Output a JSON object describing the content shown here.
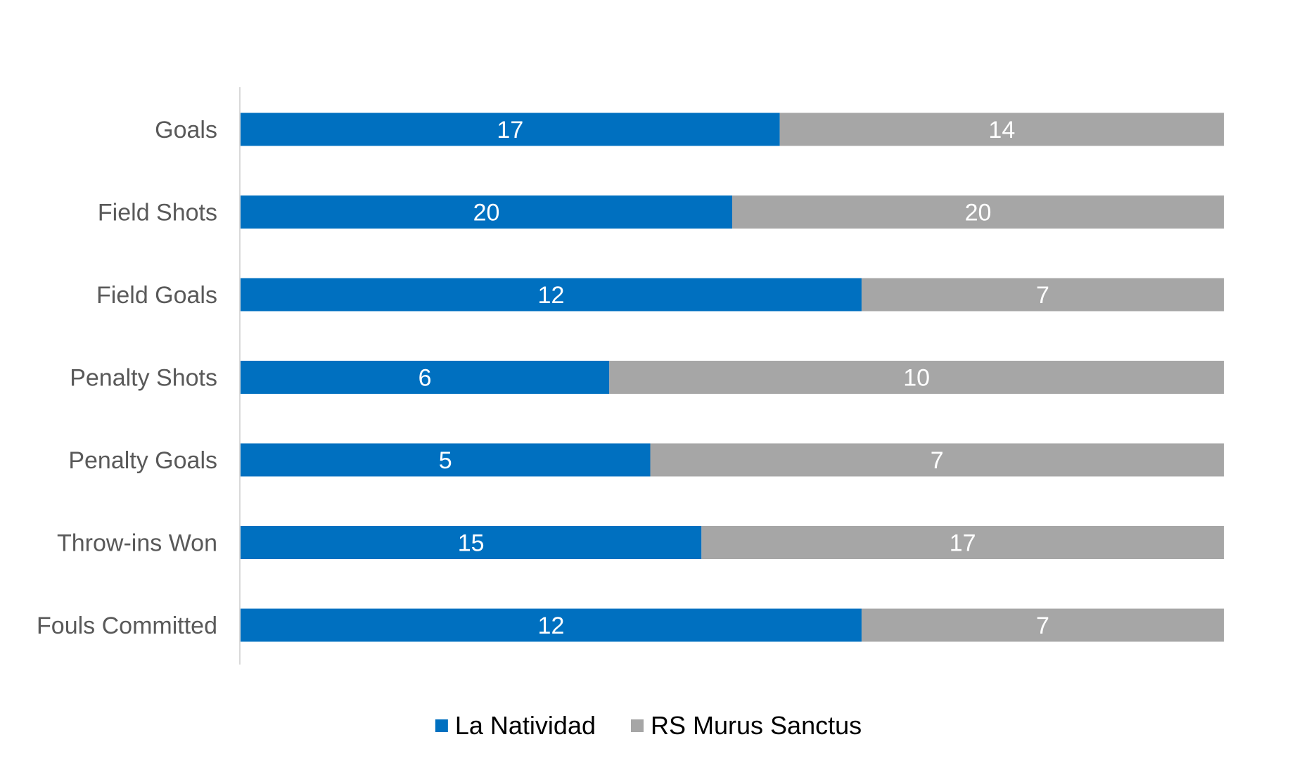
{
  "chart_data": {
    "type": "bar",
    "orientation": "horizontal",
    "stacking": "percent",
    "categories": [
      "Goals",
      "Field Shots",
      "Field Goals",
      "Penalty Shots",
      "Penalty Goals",
      "Throw-ins Won",
      "Fouls Committed"
    ],
    "series": [
      {
        "name": "La Natividad",
        "color": "#0070c0",
        "values": [
          17,
          20,
          12,
          6,
          5,
          15,
          12
        ]
      },
      {
        "name": "RS Murus Sanctus",
        "color": "#a6a6a6",
        "values": [
          14,
          20,
          7,
          10,
          7,
          17,
          7
        ]
      }
    ],
    "legend_position": "bottom",
    "grid": false
  }
}
